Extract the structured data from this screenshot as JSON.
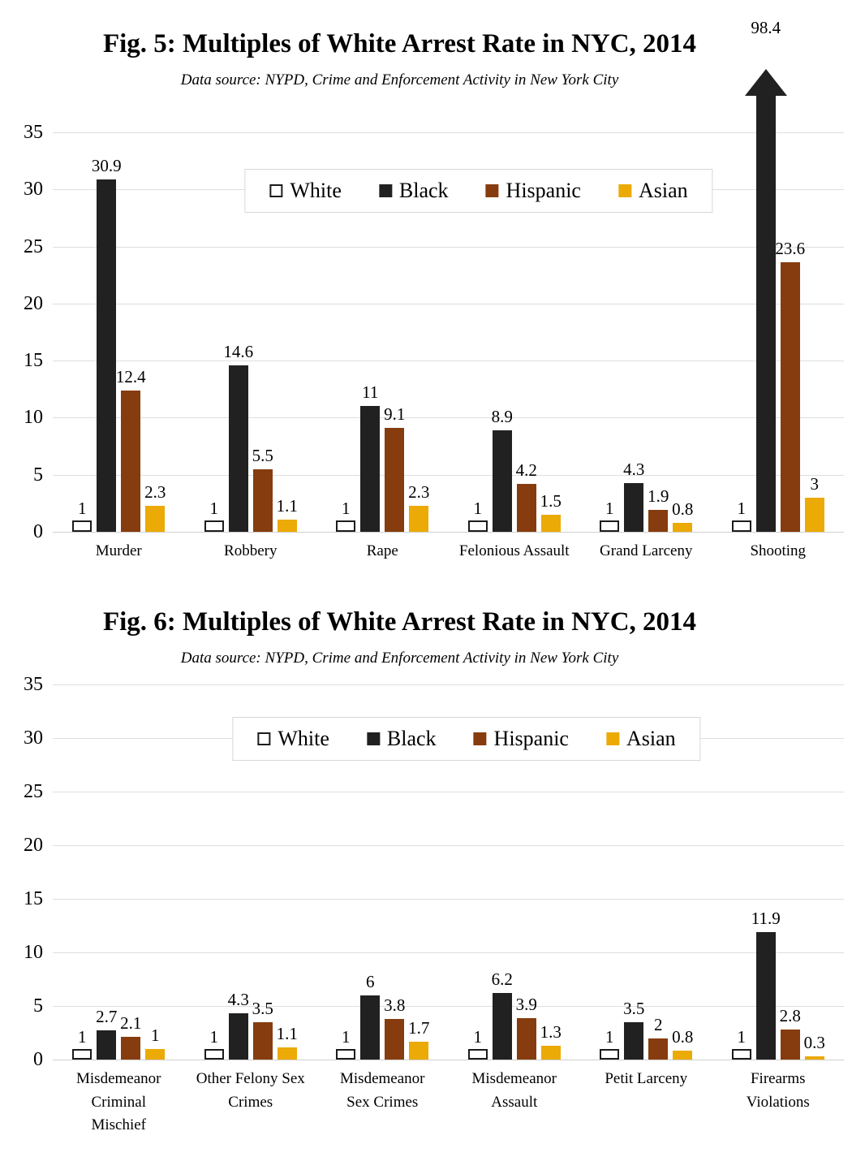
{
  "colors": {
    "White": "#FFFFFF",
    "Black": "#212121",
    "Hispanic": "#863C0E",
    "Asian": "#EBAA05",
    "white_bar_border": "#1C1C1C",
    "gridline": "#DEDEDE"
  },
  "chart_data": [
    {
      "type": "bar",
      "title": "Fig. 5: Multiples of White Arrest Rate in NYC, 2014",
      "subtitle": "Data source: NYPD, Crime and Enforcement Activity in New York City",
      "ylim": [
        0,
        35
      ],
      "yticks": [
        0,
        5,
        10,
        15,
        20,
        25,
        30,
        35
      ],
      "grid": true,
      "legend_position": "top-center-inside",
      "legend": [
        "White",
        "Black",
        "Hispanic",
        "Asian"
      ],
      "categories": [
        "Murder",
        "Robbery",
        "Rape",
        "Felonious Assault",
        "Grand Larceny",
        "Shooting"
      ],
      "series": [
        {
          "name": "White",
          "values": [
            1,
            1,
            1,
            1,
            1,
            1
          ]
        },
        {
          "name": "Black",
          "values": [
            30.9,
            14.6,
            11,
            8.9,
            4.3,
            98.4
          ]
        },
        {
          "name": "Hispanic",
          "values": [
            12.4,
            5.5,
            9.1,
            4.2,
            1.9,
            23.6
          ]
        },
        {
          "name": "Asian",
          "values": [
            2.3,
            1.1,
            2.3,
            1.5,
            0.8,
            3
          ]
        }
      ]
    },
    {
      "type": "bar",
      "title": "Fig. 6: Multiples of White Arrest Rate in NYC, 2014",
      "subtitle": "Data source: NYPD, Crime and Enforcement Activity in New York City",
      "ylim": [
        0,
        35
      ],
      "yticks": [
        0,
        5,
        10,
        15,
        20,
        25,
        30,
        35
      ],
      "grid": true,
      "legend_position": "top-center-inside",
      "legend": [
        "White",
        "Black",
        "Hispanic",
        "Asian"
      ],
      "categories": [
        "Misdemeanor Criminal Mischief",
        "Other Felony Sex Crimes",
        "Misdemeanor Sex Crimes",
        "Misdemeanor Assault",
        "Petit Larceny",
        "Firearms Violations"
      ],
      "series": [
        {
          "name": "White",
          "values": [
            1,
            1,
            1,
            1,
            1,
            1
          ]
        },
        {
          "name": "Black",
          "values": [
            2.7,
            4.3,
            6,
            6.2,
            3.5,
            11.9
          ]
        },
        {
          "name": "Hispanic",
          "values": [
            2.1,
            3.5,
            3.8,
            3.9,
            2,
            2.8
          ]
        },
        {
          "name": "Asian",
          "values": [
            1,
            1.1,
            1.7,
            1.3,
            0.8,
            0.3
          ]
        }
      ]
    }
  ]
}
